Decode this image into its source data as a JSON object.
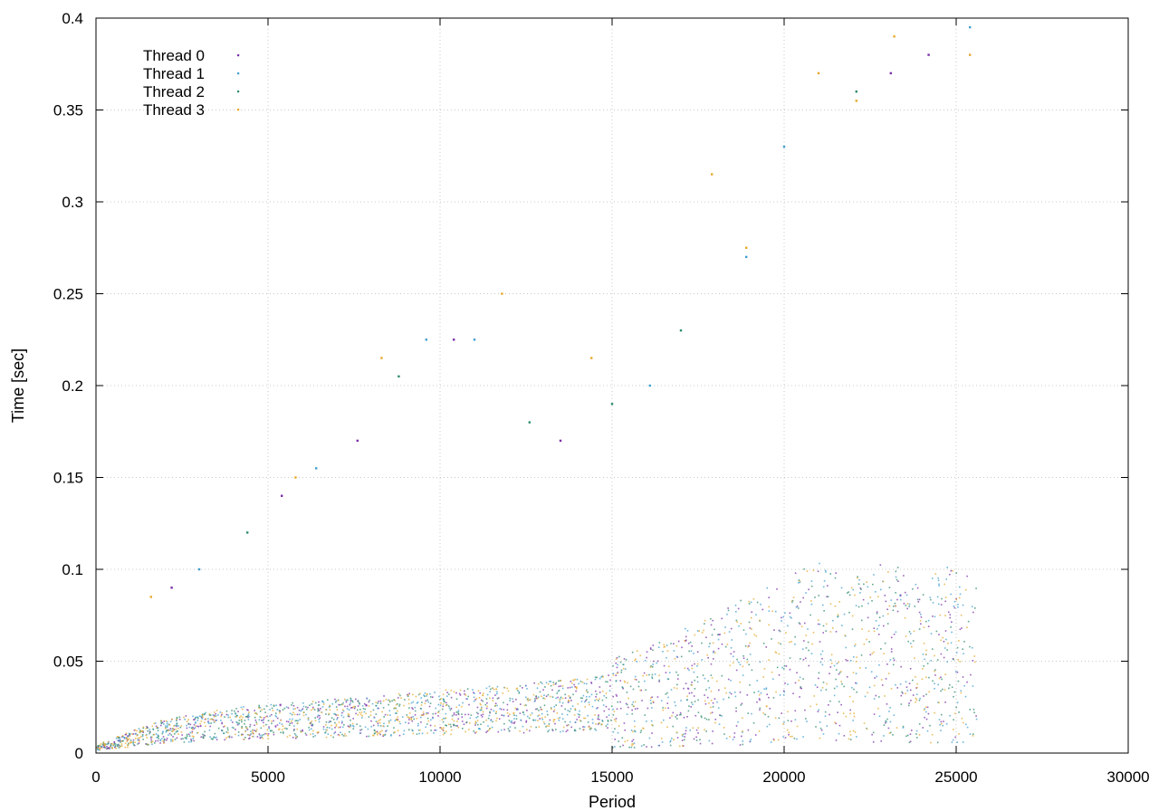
{
  "chart_data": {
    "type": "scatter",
    "title": "",
    "xlabel": "Period",
    "ylabel": "Time [sec]",
    "xlim": [
      0,
      30000
    ],
    "ylim": [
      0,
      0.4
    ],
    "x_ticks": [
      0,
      5000,
      10000,
      15000,
      20000,
      25000,
      30000
    ],
    "y_ticks": [
      0,
      0.05,
      0.1,
      0.15,
      0.2,
      0.25,
      0.3,
      0.35,
      0.4
    ],
    "x_tick_labels": [
      "0",
      "5000",
      "10000",
      "15000",
      "20000",
      "25000",
      "30000"
    ],
    "y_tick_labels": [
      "0",
      "0.05",
      "0.1",
      "0.15",
      "0.2",
      "0.25",
      "0.3",
      "0.35",
      "0.4"
    ],
    "grid": true,
    "legend_position": "top-left",
    "series": [
      {
        "name": "Thread 0",
        "color": "#7b2fa8",
        "x": [
          0,
          2000,
          4000,
          6000,
          8000,
          10000,
          12000,
          14000,
          16000,
          17000,
          18000,
          19000,
          20000,
          21000,
          22000,
          23000,
          24000,
          25000,
          25600
        ],
        "y": [
          0.003,
          0.012,
          0.016,
          0.018,
          0.02,
          0.022,
          0.024,
          0.026,
          0.03,
          0.035,
          0.04,
          0.045,
          0.05,
          0.055,
          0.05,
          0.055,
          0.05,
          0.055,
          0.05
        ],
        "outliers": [
          [
            2200,
            0.09
          ],
          [
            5400,
            0.14
          ],
          [
            7600,
            0.17
          ],
          [
            10400,
            0.225
          ],
          [
            13500,
            0.17
          ],
          [
            23100,
            0.37
          ],
          [
            24200,
            0.38
          ]
        ]
      },
      {
        "name": "Thread 1",
        "color": "#3f9fcf",
        "x": [
          0,
          2000,
          4000,
          6000,
          8000,
          10000,
          12000,
          14000,
          16000,
          17000,
          18000,
          19000,
          20000,
          21000,
          22000,
          23000,
          24000,
          25000,
          25600
        ],
        "y": [
          0.003,
          0.012,
          0.016,
          0.018,
          0.02,
          0.022,
          0.024,
          0.026,
          0.03,
          0.035,
          0.04,
          0.045,
          0.05,
          0.055,
          0.05,
          0.055,
          0.05,
          0.055,
          0.05
        ],
        "outliers": [
          [
            3000,
            0.1
          ],
          [
            6400,
            0.155
          ],
          [
            9600,
            0.225
          ],
          [
            11000,
            0.225
          ],
          [
            16100,
            0.2
          ],
          [
            18900,
            0.27
          ],
          [
            20000,
            0.33
          ],
          [
            25400,
            0.395
          ]
        ]
      },
      {
        "name": "Thread 2",
        "color": "#2e8c6e",
        "x": [
          0,
          2000,
          4000,
          6000,
          8000,
          10000,
          12000,
          14000,
          16000,
          17000,
          18000,
          19000,
          20000,
          21000,
          22000,
          23000,
          24000,
          25000,
          25600
        ],
        "y": [
          0.003,
          0.012,
          0.016,
          0.018,
          0.02,
          0.022,
          0.024,
          0.026,
          0.03,
          0.035,
          0.04,
          0.045,
          0.05,
          0.055,
          0.05,
          0.055,
          0.05,
          0.055,
          0.05
        ],
        "outliers": [
          [
            4400,
            0.12
          ],
          [
            8800,
            0.205
          ],
          [
            12600,
            0.18
          ],
          [
            15000,
            0.19
          ],
          [
            17000,
            0.23
          ],
          [
            22100,
            0.36
          ]
        ]
      },
      {
        "name": "Thread 3",
        "color": "#e6a82a",
        "x": [
          0,
          2000,
          4000,
          6000,
          8000,
          10000,
          12000,
          14000,
          16000,
          17000,
          18000,
          19000,
          20000,
          21000,
          22000,
          23000,
          24000,
          25000,
          25600
        ],
        "y": [
          0.003,
          0.012,
          0.016,
          0.018,
          0.02,
          0.022,
          0.024,
          0.026,
          0.03,
          0.035,
          0.04,
          0.045,
          0.05,
          0.055,
          0.05,
          0.055,
          0.05,
          0.055,
          0.05
        ],
        "outliers": [
          [
            1600,
            0.085
          ],
          [
            5800,
            0.15
          ],
          [
            8300,
            0.215
          ],
          [
            11800,
            0.25
          ],
          [
            14400,
            0.215
          ],
          [
            17900,
            0.315
          ],
          [
            18900,
            0.275
          ],
          [
            21000,
            0.37
          ],
          [
            22100,
            0.355
          ],
          [
            23200,
            0.39
          ],
          [
            25400,
            0.38
          ]
        ]
      }
    ]
  }
}
